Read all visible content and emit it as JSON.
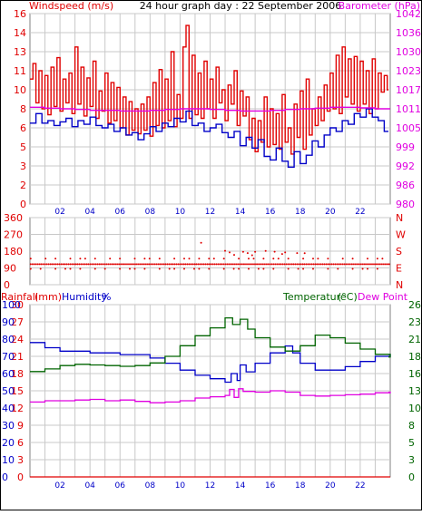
{
  "header": {
    "left_label": "Windspeed (m/s)",
    "title": "24 hour graph day : 22 September 2006",
    "right_label": "Barometer (hPa)"
  },
  "colors": {
    "background": "#ffffff",
    "frame": "#000000",
    "grid": "#c8c8c8",
    "blue": "#0000c8",
    "red": "#e00000",
    "magenta": "#e000e0",
    "green": "#006400",
    "rain_line": "#e00000"
  },
  "chart_data": [
    {
      "type": "line",
      "title": "24 hour graph day : 22 September 2006",
      "x_tick_labels": [
        "02",
        "04",
        "06",
        "08",
        "10",
        "12",
        "14",
        "16",
        "18",
        "20",
        "22"
      ],
      "x_range_hours": [
        0,
        24
      ],
      "left_axis": {
        "label": "Windspeed (m/s)",
        "range": [
          0,
          16
        ],
        "ticks": [
          "0",
          "2",
          "3",
          "5",
          "6",
          "8",
          "10",
          "11",
          "13",
          "14",
          "16"
        ]
      },
      "right_axis": {
        "label": "Barometer (hPa)",
        "range": [
          980,
          1042
        ],
        "ticks": [
          "980",
          "986",
          "992",
          "999",
          "1005",
          "1011",
          "1017",
          "1023",
          "1030",
          "1036",
          "1042"
        ]
      },
      "grid": true,
      "series": [
        {
          "name": "",
          "color": "#e00000",
          "axis": "left",
          "step": true,
          "x": [
            0.0,
            0.2,
            0.4,
            0.6,
            0.8,
            1.0,
            1.2,
            1.4,
            1.6,
            1.8,
            2.0,
            2.2,
            2.4,
            2.6,
            2.8,
            3.0,
            3.2,
            3.4,
            3.6,
            3.8,
            4.0,
            4.2,
            4.4,
            4.6,
            4.8,
            5.0,
            5.2,
            5.4,
            5.6,
            5.8,
            6.0,
            6.2,
            6.4,
            6.6,
            6.8,
            7.0,
            7.2,
            7.4,
            7.6,
            7.8,
            8.0,
            8.2,
            8.4,
            8.6,
            8.8,
            9.0,
            9.2,
            9.4,
            9.6,
            9.8,
            10.0,
            10.2,
            10.4,
            10.6,
            10.8,
            11.0,
            11.2,
            11.4,
            11.6,
            11.8,
            12.0,
            12.2,
            12.4,
            12.6,
            12.8,
            13.0,
            13.2,
            13.4,
            13.6,
            13.8,
            14.0,
            14.2,
            14.4,
            14.6,
            14.8,
            15.0,
            15.2,
            15.4,
            15.6,
            15.8,
            16.0,
            16.2,
            16.4,
            16.6,
            16.8,
            17.0,
            17.2,
            17.4,
            17.6,
            17.8,
            18.0,
            18.2,
            18.4,
            18.6,
            18.8,
            19.0,
            19.2,
            19.4,
            19.6,
            19.8,
            20.0,
            20.2,
            20.4,
            20.6,
            20.8,
            21.0,
            21.2,
            21.4,
            21.6,
            21.8,
            22.0,
            22.2,
            22.4,
            22.6,
            22.8,
            23.0,
            23.2,
            23.4,
            23.6,
            23.8
          ],
          "values": [
            10.5,
            11.8,
            8.5,
            11.2,
            8.0,
            10.8,
            7.5,
            11.5,
            8.2,
            12.3,
            7.8,
            10.5,
            8.5,
            11.0,
            7.6,
            13.2,
            8.4,
            11.5,
            7.4,
            10.6,
            8.2,
            12.0,
            7.2,
            9.5,
            7.8,
            11.0,
            6.8,
            10.2,
            7.0,
            9.8,
            6.4,
            9.0,
            5.8,
            8.6,
            6.2,
            8.0,
            5.9,
            8.4,
            6.2,
            9.0,
            5.7,
            10.2,
            6.6,
            11.3,
            6.4,
            10.5,
            7.0,
            12.8,
            6.5,
            9.2,
            7.2,
            13.2,
            15.0,
            7.2,
            12.5,
            7.5,
            11.0,
            7.2,
            12.0,
            8.0,
            10.5,
            7.2,
            11.5,
            8.5,
            9.6,
            7.0,
            10.0,
            8.4,
            11.2,
            6.6,
            9.5,
            7.4,
            9.0,
            5.4,
            7.2,
            4.4,
            7.0,
            5.2,
            9.0,
            4.8,
            8.0,
            5.0,
            7.6,
            4.6,
            9.2,
            5.2,
            6.4,
            4.2,
            8.4,
            5.6,
            9.5,
            4.6,
            10.5,
            5.8,
            8.0,
            6.6,
            9.0,
            7.0,
            10.0,
            7.8,
            11.0,
            8.0,
            12.5,
            7.6,
            13.2,
            9.0,
            12.2,
            8.4,
            12.4,
            7.8,
            12.0,
            8.4,
            11.2,
            7.6,
            12.2,
            8.0,
            11.0,
            9.4,
            10.8,
            9.6
          ]
        },
        {
          "name": "",
          "color": "#0000c8",
          "axis": "left",
          "step": true,
          "x": [
            0.0,
            0.4,
            0.8,
            1.2,
            1.6,
            2.0,
            2.4,
            2.8,
            3.2,
            3.6,
            4.0,
            4.4,
            4.8,
            5.2,
            5.6,
            6.0,
            6.4,
            6.8,
            7.2,
            7.6,
            8.0,
            8.4,
            8.8,
            9.2,
            9.6,
            10.0,
            10.4,
            10.8,
            11.2,
            11.6,
            12.0,
            12.4,
            12.8,
            13.2,
            13.6,
            14.0,
            14.4,
            14.8,
            15.2,
            15.6,
            16.0,
            16.4,
            16.8,
            17.2,
            17.6,
            18.0,
            18.4,
            18.8,
            19.2,
            19.6,
            20.0,
            20.4,
            20.8,
            21.2,
            21.6,
            22.0,
            22.4,
            22.8,
            23.2,
            23.6
          ],
          "values": [
            6.8,
            7.6,
            6.8,
            7.0,
            6.6,
            6.9,
            7.2,
            6.5,
            7.0,
            6.7,
            7.3,
            6.6,
            6.4,
            6.7,
            6.1,
            6.4,
            5.8,
            6.0,
            5.4,
            5.9,
            6.5,
            6.1,
            6.8,
            6.5,
            7.2,
            6.9,
            7.8,
            6.6,
            6.8,
            6.1,
            6.4,
            6.7,
            6.0,
            5.6,
            6.1,
            4.9,
            5.6,
            4.7,
            5.4,
            4.0,
            3.7,
            4.7,
            3.6,
            3.1,
            4.4,
            3.4,
            4.1,
            5.3,
            4.8,
            5.8,
            6.4,
            6.1,
            7.0,
            6.7,
            7.6,
            7.3,
            8.0,
            7.3,
            7.0,
            6.1
          ]
        },
        {
          "name": "",
          "color": "#e000e0",
          "axis": "right",
          "step": true,
          "x": [
            0,
            1,
            2,
            3,
            4,
            5,
            6,
            7,
            8,
            9,
            10,
            11,
            12,
            13,
            14,
            15,
            16,
            17,
            18,
            19,
            20,
            21,
            22,
            23,
            24
          ],
          "values": [
            1011.5,
            1011.2,
            1011.0,
            1010.8,
            1010.5,
            1010.5,
            1010.3,
            1010.3,
            1010.5,
            1010.8,
            1011.0,
            1011.0,
            1010.8,
            1010.5,
            1010.3,
            1010.3,
            1010.5,
            1010.8,
            1011.0,
            1011.2,
            1011.5,
            1011.5,
            1011.3,
            1011.0,
            1011.0
          ]
        }
      ]
    },
    {
      "type": "scatter",
      "x_range_hours": [
        0,
        24
      ],
      "left_axis": {
        "range": [
          0,
          360
        ],
        "ticks": [
          "0",
          "90",
          "180",
          "270",
          "360"
        ]
      },
      "right_axis": {
        "ticks": [
          "N",
          "E",
          "S",
          "W",
          "N"
        ]
      },
      "grid": true,
      "series": [
        {
          "name": "",
          "color": "#e00000",
          "bands": [
            {
              "label": "dense_west",
              "direction_deg": 110,
              "x_from": 0,
              "x_to": 24
            },
            {
              "label": "upper_scatter",
              "direction_deg": 140,
              "x_from": 0,
              "x_to": 24
            },
            {
              "label": "lower_scatter",
              "direction_deg": 85,
              "x_from": 0,
              "x_to": 24
            }
          ],
          "x": [
            11.4,
            13.0,
            13.3,
            14.2,
            14.5,
            15.0,
            15.7,
            16.3,
            17.0,
            17.8,
            18.3,
            13.6,
            14.8,
            16.8
          ],
          "values": [
            225,
            182,
            173,
            176,
            170,
            176,
            181,
            177,
            173,
            170,
            169,
            160,
            158,
            165
          ]
        }
      ]
    },
    {
      "type": "line",
      "x_tick_labels": [
        "02",
        "04",
        "06",
        "08",
        "10",
        "12",
        "14",
        "16",
        "18",
        "20",
        "22"
      ],
      "x_range_hours": [
        0,
        24
      ],
      "header_labels": {
        "rainfall": "Rainfall",
        "rainfall_unit": "(mm)",
        "humidity": "Humidity",
        "humidity_unit": "%",
        "temperature": "Temperature",
        "temperature_unit": "(°C)",
        "dewpoint": "Dew Point"
      },
      "axes": {
        "rainfall": {
          "range": [
            0,
            30
          ],
          "ticks": [
            "0",
            "3",
            "6",
            "9",
            "12",
            "15",
            "18",
            "21",
            "24",
            "27",
            "30"
          ]
        },
        "humidity": {
          "range": [
            0,
            100
          ],
          "ticks": [
            "0",
            "10",
            "20",
            "30",
            "40",
            "50",
            "60",
            "70",
            "80",
            "90",
            "100"
          ]
        },
        "temperature": {
          "range": [
            0,
            26
          ],
          "ticks": [
            "0",
            "3",
            "5",
            "8",
            "10",
            "13",
            "16",
            "18",
            "21",
            "23",
            "26"
          ]
        }
      },
      "grid": true,
      "series": [
        {
          "name": "",
          "color": "#0000c8",
          "axis": "humidity",
          "step": true,
          "x": [
            0,
            1,
            2,
            3,
            4,
            5,
            6,
            7,
            8,
            9,
            10,
            11,
            12,
            13,
            13.4,
            13.8,
            14.0,
            14.4,
            15,
            16,
            17,
            17.5,
            18,
            19,
            20,
            21,
            22,
            23,
            24
          ],
          "values": [
            78,
            75,
            73,
            73,
            72,
            72,
            71,
            71,
            69,
            66,
            62,
            59,
            57,
            55,
            60,
            56,
            65,
            61,
            66,
            72,
            76,
            72,
            66,
            62,
            62,
            64,
            67,
            70,
            71
          ]
        },
        {
          "name": "",
          "color": "#006400",
          "axis": "temperature",
          "step": true,
          "x": [
            0,
            1,
            2,
            3,
            4,
            5,
            6,
            7,
            8,
            9,
            10,
            11,
            12,
            13,
            13.5,
            14,
            14.5,
            15,
            16,
            17,
            18,
            19,
            20,
            21,
            22,
            23,
            24
          ],
          "values": [
            15.9,
            16.3,
            16.8,
            17.0,
            16.9,
            16.8,
            16.7,
            16.8,
            17.2,
            18.2,
            19.8,
            21.3,
            22.5,
            24.0,
            23.0,
            23.8,
            22.3,
            21.0,
            19.6,
            19.0,
            19.8,
            21.4,
            21.0,
            20.2,
            19.3,
            18.5,
            18.1
          ]
        },
        {
          "name": "",
          "color": "#e000e0",
          "axis": "temperature",
          "step": true,
          "x": [
            0,
            1,
            2,
            3,
            4,
            5,
            6,
            7,
            8,
            9,
            10,
            11,
            12,
            13,
            13.3,
            13.6,
            13.9,
            14.2,
            15,
            16,
            17,
            18,
            19,
            20,
            21,
            22,
            23,
            24
          ],
          "values": [
            11.3,
            11.5,
            11.5,
            11.6,
            11.7,
            11.5,
            11.6,
            11.4,
            11.2,
            11.3,
            11.5,
            11.9,
            12.1,
            12.3,
            13.2,
            12.0,
            13.3,
            12.9,
            12.8,
            13.0,
            12.8,
            12.3,
            12.2,
            12.3,
            12.4,
            12.5,
            12.7,
            12.8
          ]
        },
        {
          "name": "",
          "color": "#e00000",
          "axis": "rainfall",
          "x": [
            0,
            24
          ],
          "values": [
            0,
            0
          ]
        }
      ]
    }
  ]
}
